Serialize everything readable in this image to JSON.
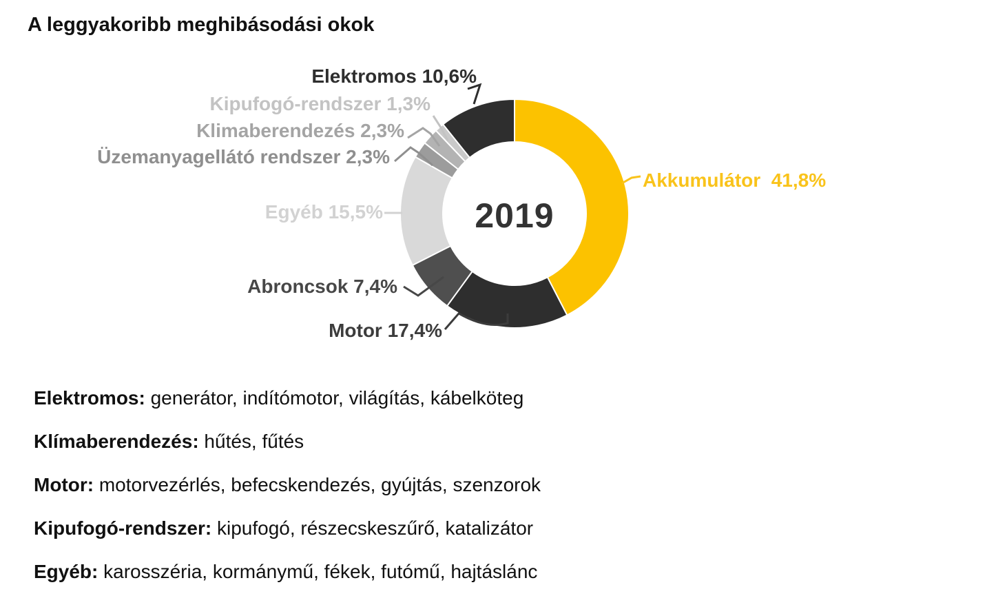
{
  "title": "A leggyakoribb meghibásodási okok",
  "chart_data": {
    "type": "pie",
    "subtype": "donut",
    "title": "A leggyakoribb meghibásodási okok",
    "center_label": "2019",
    "unit": "%",
    "start_angle_deg": 0,
    "direction": "clockwise",
    "legend_position": "callout-labels",
    "slices": [
      {
        "id": "akkumulator",
        "label": "Akkumulátor",
        "value": 41.8,
        "display": "Akkumulátor  41,8%",
        "color": "#fcc200",
        "label_color": "#f9c31b"
      },
      {
        "id": "motor",
        "label": "Motor",
        "value": 17.4,
        "display": "Motor 17,4%",
        "color": "#2e2e2e",
        "label_color": "#3c3c3c"
      },
      {
        "id": "abroncsok",
        "label": "Abroncsok",
        "value": 7.4,
        "display": "Abroncsok 7,4%",
        "color": "#4f4f4f",
        "label_color": "#474747"
      },
      {
        "id": "egyeb",
        "label": "Egyéb",
        "value": 15.5,
        "display": "Egyéb 15,5%",
        "color": "#d9d9d9",
        "label_color": "#d2d2d2"
      },
      {
        "id": "uzemanyagellato-rendszer",
        "label": "Üzemanyagellátó rendszer",
        "value": 2.3,
        "display": "Üzemanyagellátó rendszer 2,3%",
        "color": "#9c9c9c",
        "label_color": "#8f8f8f"
      },
      {
        "id": "klimaberendezes",
        "label": "Klimaberendezés",
        "value": 2.3,
        "display": "Klimaberendezés 2,3%",
        "color": "#b3b3b3",
        "label_color": "#a4a4a4"
      },
      {
        "id": "kipufogo-rendszer",
        "label": "Kipufogó-rendszer",
        "value": 1.3,
        "display": "Kipufogó-rendszer 1,3%",
        "color": "#c9c9c9",
        "label_color": "#c3c3c3"
      },
      {
        "id": "elektromos",
        "label": "Elektromos",
        "value": 10.6,
        "display": "Elektromos 10,6%",
        "color": "#2e2e2e",
        "label_color": "#2e2e2e"
      }
    ]
  },
  "legend": [
    {
      "term": "Elektromos:",
      "desc": " generátor, indítómotor, világítás, kábelköteg"
    },
    {
      "term": "Klímaberendezés:",
      "desc": " hűtés, fűtés"
    },
    {
      "term": "Motor:",
      "desc": " motorvezérlés, befecskendezés, gyújtás, szenzorok"
    },
    {
      "term": "Kipufogó-rendszer:",
      "desc": " kipufogó, részecskeszűrő, katalizátor"
    },
    {
      "term": "Egyéb:",
      "desc": " karosszéria, kormánymű, fékek, futómű, hajtáslánc"
    }
  ]
}
